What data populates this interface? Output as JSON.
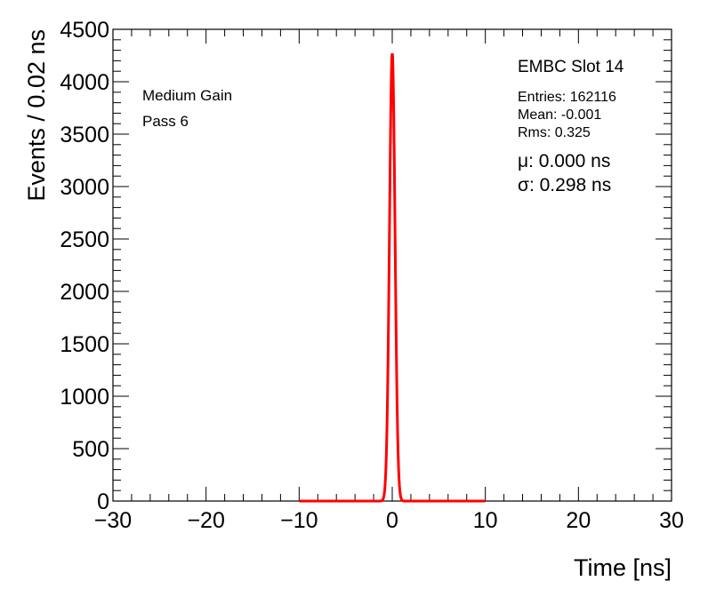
{
  "chart_data": {
    "type": "histogram",
    "xlabel": "Time [ns]",
    "ylabel": "Events / 0.02 ns",
    "xlim": [
      -30,
      30
    ],
    "ylim": [
      0,
      4500
    ],
    "x_ticks": [
      -30,
      -20,
      -10,
      0,
      10,
      20,
      30
    ],
    "y_ticks": [
      0,
      500,
      1000,
      1500,
      2000,
      2500,
      3000,
      3500,
      4000,
      4500
    ],
    "x_tick_labels": [
      "−30",
      "−20",
      "−10",
      "0",
      "10",
      "20",
      "30"
    ],
    "y_tick_labels": [
      "0",
      "500",
      "1000",
      "1500",
      "2000",
      "2500",
      "3000",
      "3500",
      "4000",
      "4500"
    ],
    "grid": false,
    "series": [
      {
        "kind": "histogram",
        "color": "#000000",
        "peak_x": 0.0,
        "peak_y": 4300,
        "sigma": 0.298,
        "x_range": [
          -1.5,
          1.5
        ]
      },
      {
        "kind": "gaussian-fit",
        "color": "#ff0000",
        "mean": 0.0,
        "sigma": 0.298,
        "amplitude": 4270,
        "x_range": [
          -10,
          10
        ]
      }
    ],
    "annotations": {
      "left": [
        "Medium Gain",
        "Pass 6"
      ],
      "title": "EMBC Slot 14",
      "stats": [
        "Entries: 162116",
        "Mean: -0.001",
        "Rms: 0.325"
      ],
      "fit": [
        "μ: 0.000 ns",
        "σ: 0.298 ns"
      ]
    }
  }
}
